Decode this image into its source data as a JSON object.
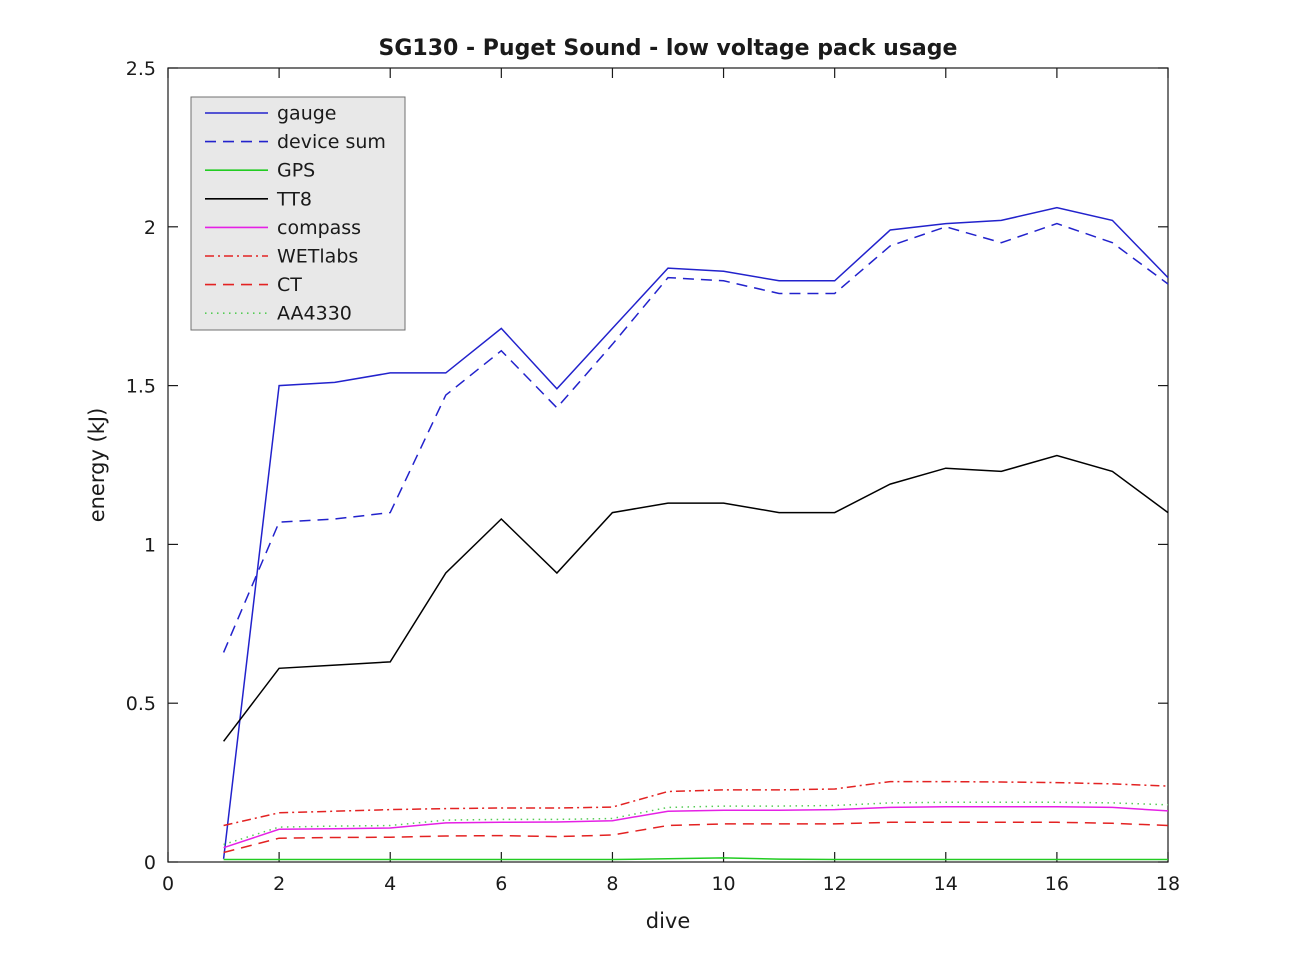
{
  "chart_data": {
    "type": "line",
    "title": "SG130 - Puget Sound - low voltage pack usage",
    "xlabel": "dive",
    "ylabel": "energy (kJ)",
    "xlim": [
      0,
      18
    ],
    "ylim": [
      0,
      2.5
    ],
    "xticks": [
      0,
      2,
      4,
      6,
      8,
      10,
      12,
      14,
      16,
      18
    ],
    "yticks": [
      0,
      0.5,
      1,
      1.5,
      2,
      2.5
    ],
    "grid": false,
    "legend_position": "upper-left",
    "legend_background": "#e8e8e8",
    "legend_border": "#707070",
    "axis_color": "#1a1a1a",
    "x": [
      1,
      2,
      3,
      4,
      5,
      6,
      7,
      8,
      9,
      10,
      11,
      12,
      13,
      14,
      15,
      16,
      17,
      18
    ],
    "series": [
      {
        "name": "gauge",
        "color": "#2222cc",
        "style": "solid",
        "values": [
          0.01,
          1.5,
          1.51,
          1.54,
          1.54,
          1.68,
          1.49,
          1.68,
          1.87,
          1.86,
          1.83,
          1.83,
          1.99,
          2.01,
          2.02,
          2.06,
          2.02,
          1.84
        ]
      },
      {
        "name": "device sum",
        "color": "#2222cc",
        "style": "dashed",
        "values": [
          0.66,
          1.07,
          1.08,
          1.1,
          1.47,
          1.61,
          1.43,
          1.63,
          1.84,
          1.83,
          1.79,
          1.79,
          1.94,
          2.0,
          1.95,
          2.01,
          1.95,
          1.82
        ]
      },
      {
        "name": "GPS",
        "color": "#22cc22",
        "style": "solid",
        "values": [
          0.008,
          0.008,
          0.008,
          0.008,
          0.008,
          0.008,
          0.008,
          0.008,
          0.01,
          0.013,
          0.009,
          0.008,
          0.008,
          0.008,
          0.008,
          0.008,
          0.008,
          0.008
        ]
      },
      {
        "name": "TT8",
        "color": "#000000",
        "style": "solid",
        "values": [
          0.38,
          0.61,
          0.62,
          0.63,
          0.91,
          1.08,
          0.91,
          1.1,
          1.13,
          1.13,
          1.1,
          1.1,
          1.19,
          1.24,
          1.23,
          1.28,
          1.23,
          1.1
        ]
      },
      {
        "name": "compass",
        "color": "#e520e5",
        "style": "solid",
        "values": [
          0.045,
          0.103,
          0.105,
          0.107,
          0.123,
          0.125,
          0.126,
          0.13,
          0.16,
          0.163,
          0.163,
          0.165,
          0.172,
          0.174,
          0.174,
          0.174,
          0.172,
          0.161
        ]
      },
      {
        "name": "WETlabs",
        "color": "#e32222",
        "style": "dash-dot",
        "values": [
          0.115,
          0.155,
          0.16,
          0.165,
          0.168,
          0.17,
          0.17,
          0.173,
          0.222,
          0.227,
          0.227,
          0.23,
          0.253,
          0.253,
          0.252,
          0.25,
          0.246,
          0.239
        ]
      },
      {
        "name": "CT",
        "color": "#e32222",
        "style": "dashed",
        "values": [
          0.03,
          0.075,
          0.077,
          0.078,
          0.082,
          0.083,
          0.08,
          0.085,
          0.115,
          0.12,
          0.12,
          0.12,
          0.125,
          0.125,
          0.125,
          0.125,
          0.122,
          0.115
        ]
      },
      {
        "name": "AA4330",
        "color": "#55cc55",
        "style": "dotted",
        "values": [
          0.055,
          0.11,
          0.113,
          0.115,
          0.132,
          0.134,
          0.134,
          0.137,
          0.172,
          0.176,
          0.176,
          0.178,
          0.186,
          0.188,
          0.188,
          0.188,
          0.186,
          0.18
        ]
      }
    ]
  }
}
